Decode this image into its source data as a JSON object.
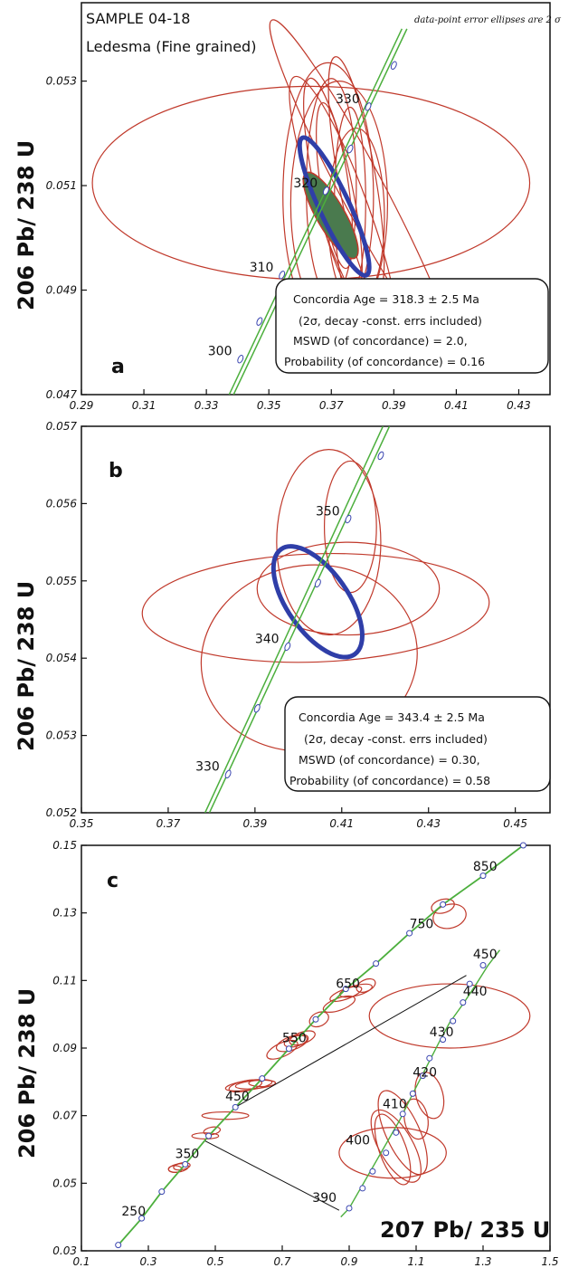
{
  "chart_data": [
    {
      "type": "scatter",
      "panel": "a",
      "title_lines": [
        "SAMPLE 04-18",
        "Ledesma (Fine grained)"
      ],
      "note": "data-point error ellipses are 2 σ",
      "xlim": [
        0.29,
        0.44
      ],
      "ylim": [
        0.047,
        0.0545
      ],
      "xticks": [
        "0.29",
        "0.31",
        "0.33",
        "0.35",
        "0.37",
        "0.39",
        "0.41",
        "0.43"
      ],
      "yticks": [
        "0.047",
        "0.049",
        "0.051",
        "0.053"
      ],
      "ylabel": "206 Pb/ 238 U",
      "concordia": {
        "line1": [
          [
            0.3373,
            0.047
          ],
          [
            0.3926,
            0.054
          ]
        ],
        "line2": [
          [
            0.3387,
            0.047
          ],
          [
            0.3942,
            0.054
          ]
        ]
      },
      "age_markers": [
        {
          "label": "300",
          "x": 0.3409,
          "y": 0.04768
        },
        {
          "label": "310",
          "x": 0.3542,
          "y": 0.04929
        },
        {
          "label": "320",
          "x": 0.3683,
          "y": 0.0509
        },
        {
          "label": "330",
          "x": 0.3818,
          "y": 0.05251
        }
      ],
      "extra_markers": [
        [
          0.347,
          0.0484
        ],
        [
          0.376,
          0.0517
        ],
        [
          0.39,
          0.0533
        ]
      ],
      "ellipses": [
        {
          "cx": 0.3635,
          "cy": 0.05105,
          "rx": 0.07,
          "ry": 0.00185,
          "angle": 0
        },
        {
          "cx": 0.3705,
          "cy": 0.051,
          "rx": 0.006,
          "ry": 0.0021,
          "angle": -12
        },
        {
          "cx": 0.369,
          "cy": 0.0508,
          "rx": 0.0145,
          "ry": 0.00255,
          "angle": 0
        },
        {
          "cx": 0.3725,
          "cy": 0.05065,
          "rx": 0.0155,
          "ry": 0.00235,
          "angle": 0
        },
        {
          "cx": 0.37,
          "cy": 0.05095,
          "rx": 0.008,
          "ry": 0.0021,
          "angle": 0
        },
        {
          "cx": 0.376,
          "cy": 0.0507,
          "rx": 0.005,
          "ry": 0.0018,
          "angle": 0
        },
        {
          "cx": 0.371,
          "cy": 0.051,
          "rx": 0.0045,
          "ry": 0.0016,
          "angle": -8
        },
        {
          "cx": 0.378,
          "cy": 0.0512,
          "rx": 0.006,
          "ry": 0.0023,
          "angle": -10
        },
        {
          "cx": 0.374,
          "cy": 0.0505,
          "rx": 0.008,
          "ry": 0.00275,
          "angle": -20
        },
        {
          "cx": 0.38,
          "cy": 0.0509,
          "rx": 0.007,
          "ry": 0.0037,
          "angle": -28
        },
        {
          "cx": 0.378,
          "cy": 0.0504,
          "rx": 0.009,
          "ry": 0.0017,
          "angle": 0
        }
      ],
      "mean_ellipse": {
        "cx": 0.3698,
        "cy": 0.05043,
        "rx": 0.0045,
        "ry": 0.00094,
        "angle": -30
      },
      "concordia_ellipse": {
        "cx": 0.371,
        "cy": 0.0506,
        "rx": 0.0048,
        "ry": 0.00145,
        "angle": -25
      },
      "box": [
        "Concordia    Age = 318.3 ± 2.5 Ma",
        "(2σ,  decay -const. errs included)",
        "MSWD    (of concordance) = 2.0,",
        "Probability   (of concordance) = 0.16"
      ]
    },
    {
      "type": "scatter",
      "panel": "b",
      "xlim": [
        0.35,
        0.458
      ],
      "ylim": [
        0.052,
        0.057
      ],
      "xticks": [
        "0.35",
        "0.37",
        "0.39",
        "0.41",
        "0.43",
        "0.45"
      ],
      "yticks": [
        "0.052",
        "0.053",
        "0.054",
        "0.055",
        "0.056",
        "0.057"
      ],
      "ylabel": "206 Pb/ 238 U",
      "concordia": {
        "line1": [
          [
            0.3785,
            0.052
          ],
          [
            0.4195,
            0.057
          ]
        ],
        "line2": [
          [
            0.3795,
            0.052
          ],
          [
            0.421,
            0.057
          ]
        ]
      },
      "age_markers": [
        {
          "label": "330",
          "x": 0.3838,
          "y": 0.0525
        },
        {
          "label": "340",
          "x": 0.3975,
          "y": 0.05415
        },
        {
          "label": "350",
          "x": 0.4115,
          "y": 0.0558
        }
      ],
      "extra_markers": [
        [
          0.3905,
          0.05335
        ],
        [
          0.4045,
          0.05497
        ],
        [
          0.419,
          0.05662
        ]
      ],
      "ellipses": [
        {
          "cx": 0.404,
          "cy": 0.05465,
          "rx": 0.04,
          "ry": 0.0007,
          "angle": -2
        },
        {
          "cx": 0.4115,
          "cy": 0.0549,
          "rx": 0.021,
          "ry": 0.0006,
          "angle": 0
        },
        {
          "cx": 0.4025,
          "cy": 0.054,
          "rx": 0.025,
          "ry": 0.0012,
          "angle": -10
        },
        {
          "cx": 0.407,
          "cy": 0.0555,
          "rx": 0.012,
          "ry": 0.0012,
          "angle": 0
        },
        {
          "cx": 0.412,
          "cy": 0.0557,
          "rx": 0.006,
          "ry": 0.00085,
          "angle": 0
        }
      ],
      "concordia_ellipse": {
        "cx": 0.4045,
        "cy": 0.05473,
        "rx": 0.007,
        "ry": 0.00083,
        "angle": -35
      },
      "box": [
        "Concordia    Age = 343.4 ± 2.5 Ma",
        "(2σ,  decay -const. errs included)",
        "MSWD    (of concordance) = 0.30,",
        "Probability   (of concordance) = 0.58"
      ]
    },
    {
      "type": "scatter",
      "panel": "c",
      "xlim": [
        0.1,
        1.5
      ],
      "ylim": [
        0.03,
        0.15
      ],
      "xticks": [
        "0.1",
        "0.3",
        "0.5",
        "0.7",
        "0.9",
        "1.1",
        "1.3",
        "1.5"
      ],
      "yticks": [
        "0.03",
        "0.05",
        "0.07",
        "0.09",
        "0.11",
        "0.13",
        "0.15"
      ],
      "ylabel": "206 Pb/ 238 U",
      "xlabel": "207 Pb/ 235 U",
      "concordia": [
        [
          0.21,
          0.0317
        ],
        [
          0.28,
          0.0396
        ],
        [
          0.34,
          0.0475
        ],
        [
          0.41,
          0.0556
        ],
        [
          0.48,
          0.064
        ],
        [
          0.56,
          0.0725
        ],
        [
          0.64,
          0.081
        ],
        [
          0.72,
          0.0898
        ],
        [
          0.8,
          0.0985
        ],
        [
          0.89,
          0.1075
        ],
        [
          0.98,
          0.115
        ],
        [
          1.08,
          0.124
        ],
        [
          1.18,
          0.1325
        ],
        [
          1.3,
          0.141
        ],
        [
          1.42,
          0.15
        ]
      ],
      "concordia_inset": [
        [
          0.875,
          0.04
        ],
        [
          0.9,
          0.0426
        ],
        [
          1.05,
          0.0685
        ],
        [
          1.09,
          0.0765
        ],
        [
          1.17,
          0.092
        ],
        [
          1.2,
          0.0975
        ],
        [
          1.24,
          0.103
        ],
        [
          1.28,
          0.109
        ],
        [
          1.315,
          0.1145
        ],
        [
          1.35,
          0.119
        ]
      ],
      "markers": [
        [
          0.21,
          0.0317
        ],
        [
          0.28,
          0.0396
        ],
        [
          0.34,
          0.0475
        ],
        [
          0.41,
          0.0556
        ],
        [
          0.48,
          0.064
        ],
        [
          0.56,
          0.0725
        ],
        [
          0.64,
          0.081
        ],
        [
          0.72,
          0.0898
        ],
        [
          0.8,
          0.0985
        ],
        [
          0.89,
          0.1075
        ],
        [
          0.98,
          0.115
        ],
        [
          1.08,
          0.124
        ],
        [
          1.18,
          0.1325
        ],
        [
          1.3,
          0.141
        ],
        [
          1.42,
          0.15
        ],
        [
          0.9,
          0.0426
        ],
        [
          0.94,
          0.0485
        ],
        [
          0.97,
          0.0535
        ],
        [
          1.01,
          0.059
        ],
        [
          1.04,
          0.065
        ],
        [
          1.06,
          0.0705
        ],
        [
          1.09,
          0.0765
        ],
        [
          1.12,
          0.0818
        ],
        [
          1.14,
          0.087
        ],
        [
          1.18,
          0.0925
        ],
        [
          1.21,
          0.098
        ],
        [
          1.24,
          0.1035
        ],
        [
          1.26,
          0.109
        ],
        [
          1.3,
          0.1145
        ]
      ],
      "age_labels": [
        {
          "label": "250",
          "x": 0.22,
          "y": 0.0405
        },
        {
          "label": "350",
          "x": 0.38,
          "y": 0.0575
        },
        {
          "label": "450",
          "x": 0.53,
          "y": 0.0745
        },
        {
          "label": "550",
          "x": 0.7,
          "y": 0.0918
        },
        {
          "label": "650",
          "x": 0.86,
          "y": 0.1078
        },
        {
          "label": "750",
          "x": 1.08,
          "y": 0.1255
        },
        {
          "label": "850",
          "x": 1.27,
          "y": 0.1425
        },
        {
          "label": "390",
          "x": 0.79,
          "y": 0.0445
        },
        {
          "label": "400",
          "x": 0.89,
          "y": 0.0615
        },
        {
          "label": "410",
          "x": 1.0,
          "y": 0.0722
        },
        {
          "label": "420",
          "x": 1.09,
          "y": 0.0815
        },
        {
          "label": "430",
          "x": 1.14,
          "y": 0.0935
        },
        {
          "label": "440",
          "x": 1.24,
          "y": 0.1055
        },
        {
          "label": "450",
          "x": 1.27,
          "y": 0.1165
        }
      ],
      "ellipses": [
        {
          "cx": 0.39,
          "cy": 0.0545,
          "rx": 0.03,
          "ry": 0.0012,
          "angle": -10
        },
        {
          "cx": 0.4,
          "cy": 0.055,
          "rx": 0.025,
          "ry": 0.001,
          "angle": -10
        },
        {
          "cx": 0.38,
          "cy": 0.0542,
          "rx": 0.02,
          "ry": 0.001,
          "angle": 0
        },
        {
          "cx": 0.47,
          "cy": 0.064,
          "rx": 0.04,
          "ry": 0.0009,
          "angle": 0
        },
        {
          "cx": 0.49,
          "cy": 0.0655,
          "rx": 0.025,
          "ry": 0.0011,
          "angle": -10
        },
        {
          "cx": 0.53,
          "cy": 0.07,
          "rx": 0.07,
          "ry": 0.0011,
          "angle": 0
        },
        {
          "cx": 0.6,
          "cy": 0.079,
          "rx": 0.07,
          "ry": 0.0014,
          "angle": -8
        },
        {
          "cx": 0.62,
          "cy": 0.0792,
          "rx": 0.06,
          "ry": 0.0012,
          "angle": -5
        },
        {
          "cx": 0.59,
          "cy": 0.0788,
          "rx": 0.05,
          "ry": 0.0015,
          "angle": -12
        },
        {
          "cx": 0.64,
          "cy": 0.0796,
          "rx": 0.04,
          "ry": 0.001,
          "angle": 0
        },
        {
          "cx": 0.7,
          "cy": 0.0895,
          "rx": 0.05,
          "ry": 0.002,
          "angle": -25
        },
        {
          "cx": 0.73,
          "cy": 0.0915,
          "rx": 0.05,
          "ry": 0.002,
          "angle": -20
        },
        {
          "cx": 0.76,
          "cy": 0.093,
          "rx": 0.04,
          "ry": 0.0017,
          "angle": -20
        },
        {
          "cx": 0.74,
          "cy": 0.092,
          "rx": 0.035,
          "ry": 0.0015,
          "angle": -15
        },
        {
          "cx": 0.81,
          "cy": 0.0985,
          "rx": 0.03,
          "ry": 0.002,
          "angle": -25
        },
        {
          "cx": 0.87,
          "cy": 0.103,
          "rx": 0.05,
          "ry": 0.0018,
          "angle": -20
        },
        {
          "cx": 0.89,
          "cy": 0.106,
          "rx": 0.05,
          "ry": 0.0015,
          "angle": -20
        },
        {
          "cx": 0.92,
          "cy": 0.107,
          "rx": 0.05,
          "ry": 0.0015,
          "angle": -15
        },
        {
          "cx": 0.95,
          "cy": 0.1085,
          "rx": 0.03,
          "ry": 0.0017,
          "angle": -25
        },
        {
          "cx": 1.2,
          "cy": 0.129,
          "rx": 0.05,
          "ry": 0.0035,
          "angle": -15
        },
        {
          "cx": 1.18,
          "cy": 0.132,
          "rx": 0.035,
          "ry": 0.002,
          "angle": -15
        },
        {
          "cx": 1.2,
          "cy": 0.0995,
          "rx": 0.24,
          "ry": 0.0095,
          "angle": 0
        },
        {
          "cx": 1.03,
          "cy": 0.059,
          "rx": 0.16,
          "ry": 0.0075,
          "angle": 0
        },
        {
          "cx": 1.04,
          "cy": 0.061,
          "rx": 0.05,
          "ry": 0.012,
          "angle": -30
        },
        {
          "cx": 1.06,
          "cy": 0.065,
          "rx": 0.05,
          "ry": 0.0135,
          "angle": -25
        },
        {
          "cx": 1.03,
          "cy": 0.06,
          "rx": 0.04,
          "ry": 0.011,
          "angle": -20
        },
        {
          "cx": 1.14,
          "cy": 0.076,
          "rx": 0.04,
          "ry": 0.007,
          "angle": -15
        },
        {
          "cx": 1.1,
          "cy": 0.069,
          "rx": 0.035,
          "ry": 0.006,
          "angle": -10
        }
      ],
      "connectors": [
        [
          [
            0.56,
            0.0725
          ],
          [
            1.25,
            0.1115
          ]
        ],
        [
          [
            0.47,
            0.0625
          ],
          [
            0.87,
            0.042
          ]
        ]
      ]
    }
  ],
  "colors": {
    "ellipse": "#c0392b",
    "concordia": "#4caf3d",
    "mean": "#2f3ea8",
    "marker": "#3a45b0",
    "fill": "#4a7a4e"
  }
}
